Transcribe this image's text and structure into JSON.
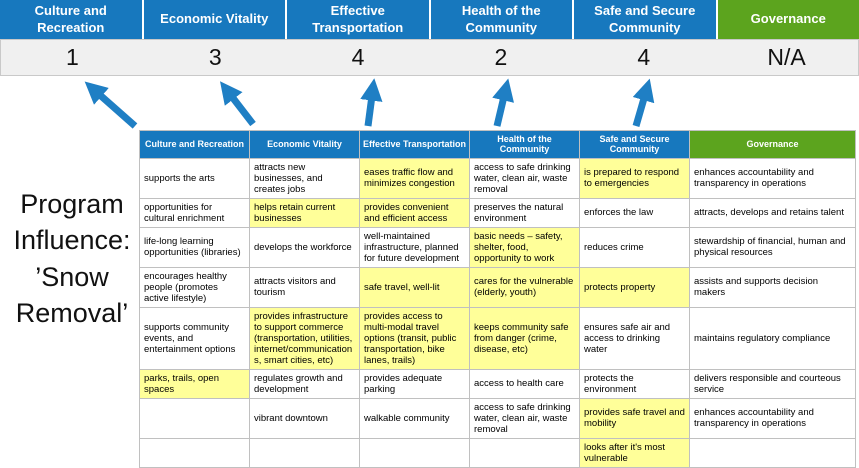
{
  "page": {
    "title": "Program Influence: ’Snow Removal’"
  },
  "colors": {
    "blue": "#1778BE",
    "green": "#5CA41E",
    "highlight": "#FFFF99",
    "arrow": "#1F7FC4",
    "score_bg": "#F0F0F0"
  },
  "scoreboard": {
    "columns": [
      {
        "label": "Culture and Recreation",
        "score": "1",
        "theme": "blue"
      },
      {
        "label": "Economic Vitality",
        "score": "3",
        "theme": "blue"
      },
      {
        "label": "Effective Transportation",
        "score": "4",
        "theme": "blue"
      },
      {
        "label": "Health of the Community",
        "score": "2",
        "theme": "blue"
      },
      {
        "label": "Safe and Secure Community",
        "score": "4",
        "theme": "blue"
      },
      {
        "label": "Governance",
        "score": "N/A",
        "theme": "green"
      }
    ]
  },
  "matrix": {
    "headers": [
      {
        "label": "Culture and Recreation",
        "theme": "blue"
      },
      {
        "label": "Economic Vitality",
        "theme": "blue"
      },
      {
        "label": "Effective Transportation",
        "theme": "blue"
      },
      {
        "label": "Health of the Community",
        "theme": "blue"
      },
      {
        "label": "Safe and Secure Community",
        "theme": "blue"
      },
      {
        "label": "Governance",
        "theme": "green"
      }
    ],
    "rows": [
      [
        {
          "text": "supports the arts",
          "highlight": false
        },
        {
          "text": "attracts new businesses, and creates jobs",
          "highlight": false
        },
        {
          "text": "eases traffic flow and minimizes congestion",
          "highlight": true
        },
        {
          "text": "access to safe drinking water, clean air, waste removal",
          "highlight": false
        },
        {
          "text": "is prepared to respond to emergencies",
          "highlight": true
        },
        {
          "text": "enhances accountability and transparency in operations",
          "highlight": false
        }
      ],
      [
        {
          "text": "opportunities for cultural enrichment",
          "highlight": false
        },
        {
          "text": "helps retain current businesses",
          "highlight": true
        },
        {
          "text": "provides convenient and efficient access",
          "highlight": true
        },
        {
          "text": "preserves the natural environment",
          "highlight": false
        },
        {
          "text": "enforces the law",
          "highlight": false
        },
        {
          "text": "attracts, develops and retains talent",
          "highlight": false
        }
      ],
      [
        {
          "text": "life-long learning opportunities (libraries)",
          "highlight": false
        },
        {
          "text": "develops the workforce",
          "highlight": false
        },
        {
          "text": "well-maintained infrastructure, planned for future development",
          "highlight": false
        },
        {
          "text": "basic needs – safety, shelter, food, opportunity to work",
          "highlight": true
        },
        {
          "text": "reduces crime",
          "highlight": false
        },
        {
          "text": "stewardship of financial, human and physical resources",
          "highlight": false
        }
      ],
      [
        {
          "text": "encourages healthy people (promotes active lifestyle)",
          "highlight": false
        },
        {
          "text": "attracts visitors and tourism",
          "highlight": false
        },
        {
          "text": "safe travel, well-lit",
          "highlight": true
        },
        {
          "text": "cares for the vulnerable (elderly, youth)",
          "highlight": true
        },
        {
          "text": "protects property",
          "highlight": true
        },
        {
          "text": "assists and supports decision makers",
          "highlight": false
        }
      ],
      [
        {
          "text": "supports community events, and entertainment options",
          "highlight": false
        },
        {
          "text": "provides infrastructure to support commerce (transportation, utilities, internet/communications, smart cities, etc)",
          "highlight": true
        },
        {
          "text": "provides access to multi-modal travel options (transit, public transportation, bike lanes, trails)",
          "highlight": true
        },
        {
          "text": "keeps community safe from danger (crime, disease, etc)",
          "highlight": true
        },
        {
          "text": "ensures safe air and access to drinking water",
          "highlight": false
        },
        {
          "text": "maintains regulatory compliance",
          "highlight": false
        }
      ],
      [
        {
          "text": "parks, trails, open spaces",
          "highlight": true
        },
        {
          "text": "regulates growth and development",
          "highlight": false
        },
        {
          "text": "provides adequate parking",
          "highlight": false
        },
        {
          "text": "access to health care",
          "highlight": false
        },
        {
          "text": "protects the environment",
          "highlight": false
        },
        {
          "text": "delivers responsible and courteous service",
          "highlight": false
        }
      ],
      [
        {
          "text": "",
          "highlight": false
        },
        {
          "text": "vibrant downtown",
          "highlight": false
        },
        {
          "text": "walkable community",
          "highlight": false
        },
        {
          "text": "access to safe drinking water, clean air, waste removal",
          "highlight": false
        },
        {
          "text": "provides safe travel and mobility",
          "highlight": true
        },
        {
          "text": "enhances accountability and transparency in operations",
          "highlight": false
        }
      ],
      [
        {
          "text": "",
          "highlight": false
        },
        {
          "text": "",
          "highlight": false
        },
        {
          "text": "",
          "highlight": false
        },
        {
          "text": "",
          "highlight": false
        },
        {
          "text": "looks after it's most vulnerable",
          "highlight": true
        },
        {
          "text": "",
          "highlight": false
        }
      ]
    ]
  }
}
